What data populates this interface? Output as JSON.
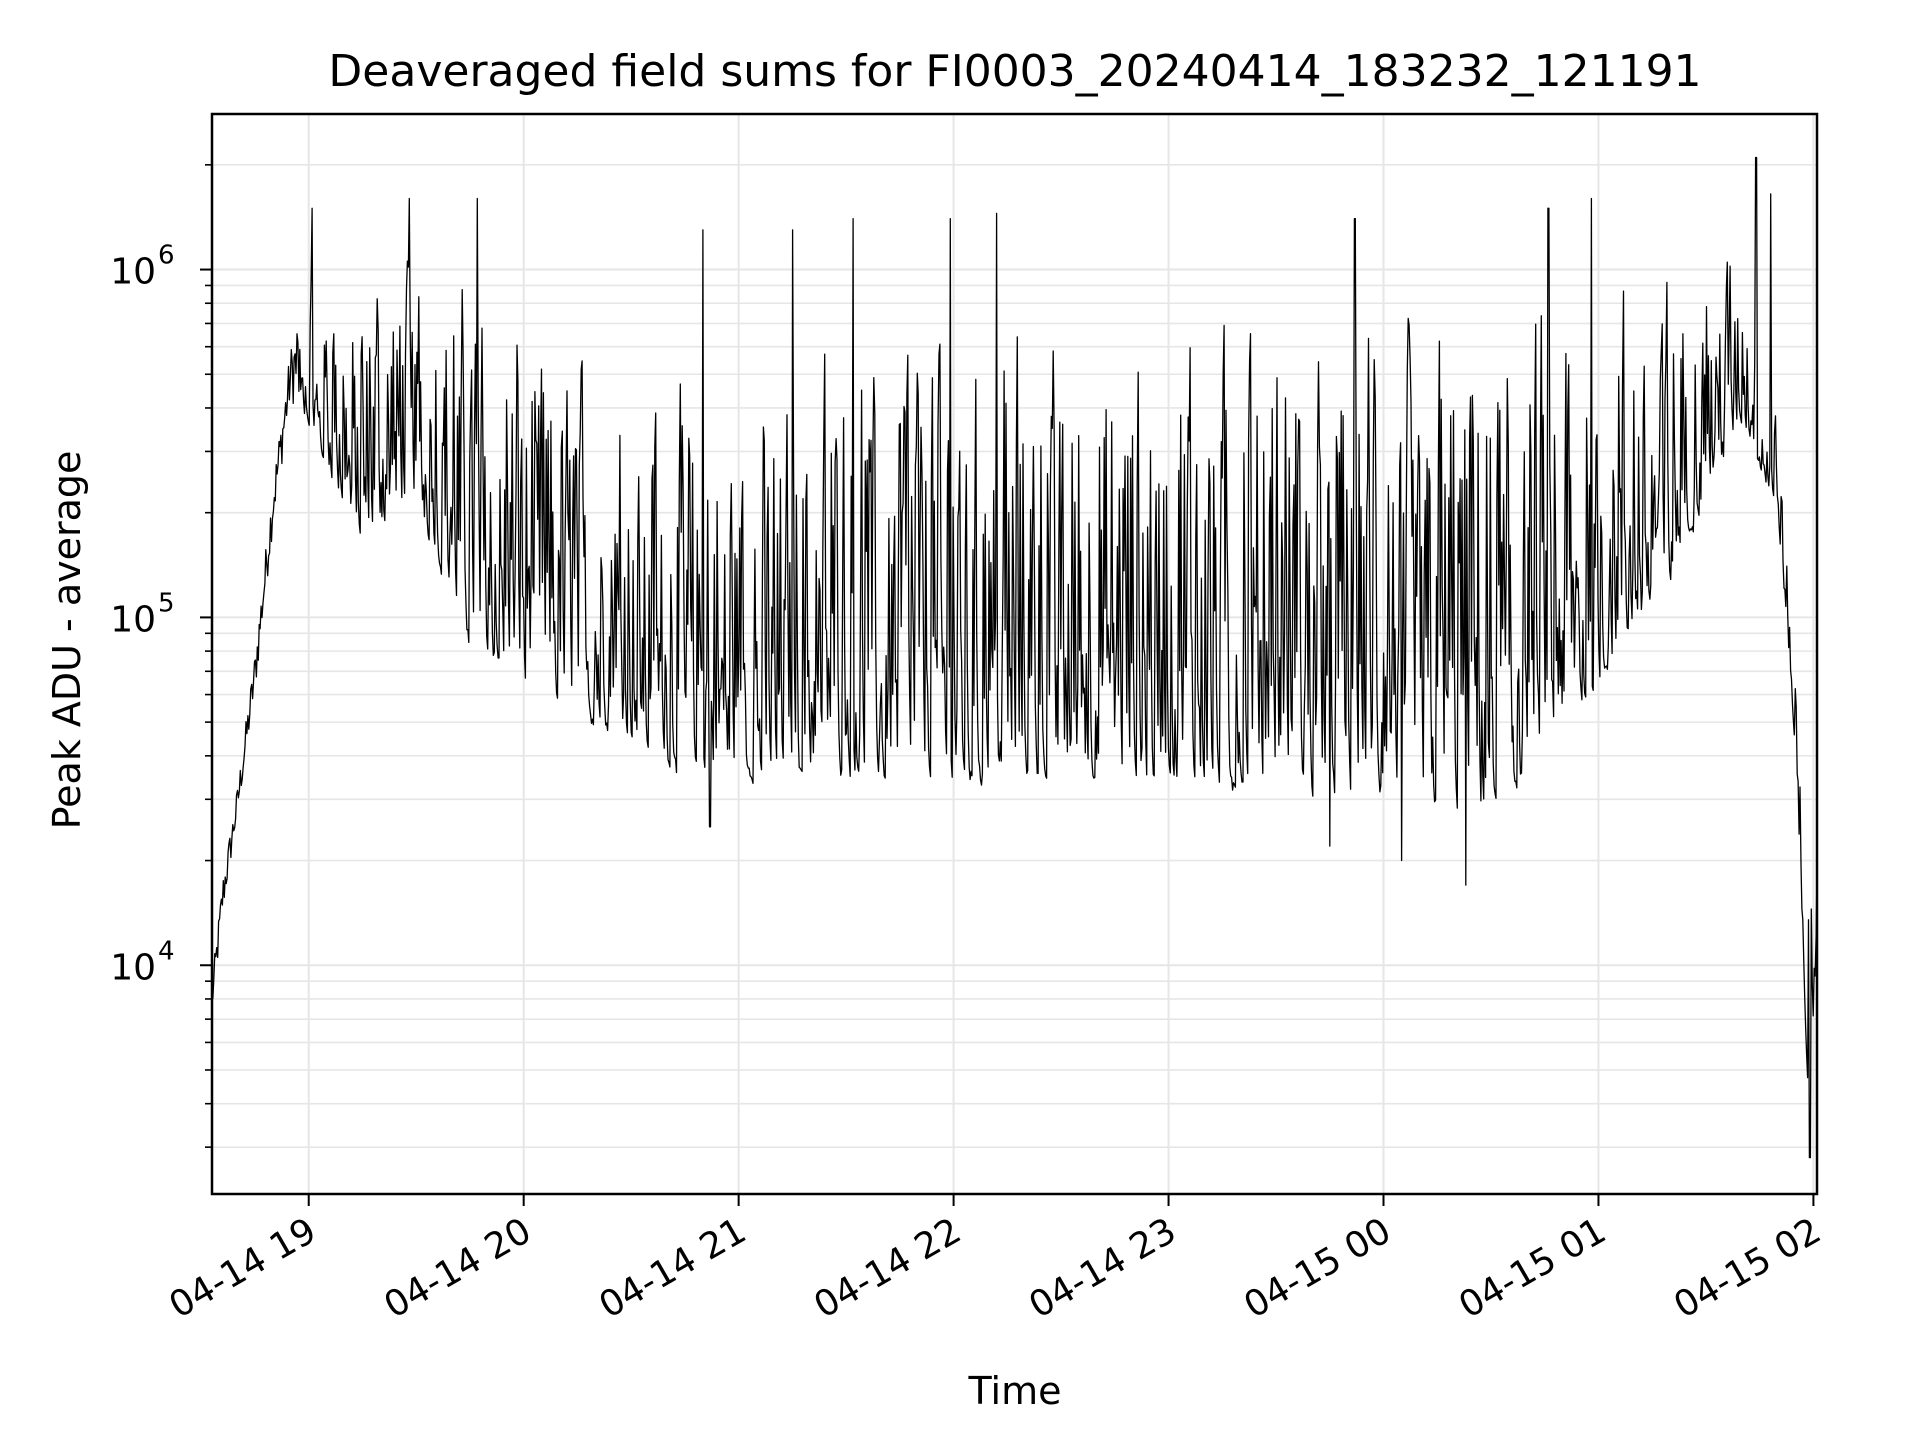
{
  "chart_data": {
    "type": "line",
    "title": "Deaveraged field sums for FI0003_20240414_183232_121191",
    "xlabel": "Time",
    "ylabel": "Peak ADU - average",
    "yscale": "log",
    "xlim": [
      "2024-04-14 18:33",
      "2024-04-15 02:01"
    ],
    "ylim": [
      2200,
      2800000
    ],
    "grid": true,
    "line_color": "#000000",
    "grid_color": "#e6e6e6",
    "x_ticks": [
      {
        "t": "2024-04-14 19:00",
        "label": "04-14 19"
      },
      {
        "t": "2024-04-14 20:00",
        "label": "04-14 20"
      },
      {
        "t": "2024-04-14 21:00",
        "label": "04-14 21"
      },
      {
        "t": "2024-04-14 22:00",
        "label": "04-14 22"
      },
      {
        "t": "2024-04-14 23:00",
        "label": "04-14 23"
      },
      {
        "t": "2024-04-15 00:00",
        "label": "04-15 00"
      },
      {
        "t": "2024-04-15 01:00",
        "label": "04-15 01"
      },
      {
        "t": "2024-04-15 02:00",
        "label": "04-15 02"
      }
    ],
    "y_ticks": [
      {
        "value": 10000,
        "base": "10",
        "exp": "4"
      },
      {
        "value": 100000,
        "base": "10",
        "exp": "5"
      },
      {
        "value": 1000000,
        "base": "10",
        "exp": "6"
      }
    ],
    "series": [
      {
        "envelope": [
          {
            "t": "2024-04-14 18:33",
            "low": 7000,
            "high": 9000
          },
          {
            "t": "2024-04-14 18:36",
            "low": 14000,
            "high": 18000
          },
          {
            "t": "2024-04-14 18:40",
            "low": 26000,
            "high": 32000
          },
          {
            "t": "2024-04-14 18:45",
            "low": 60000,
            "high": 80000
          },
          {
            "t": "2024-04-14 18:50",
            "low": 180000,
            "high": 250000
          },
          {
            "t": "2024-04-14 18:55",
            "low": 420000,
            "high": 600000
          },
          {
            "t": "2024-04-14 19:00",
            "low": 350000,
            "high": 1100000
          },
          {
            "t": "2024-04-14 19:15",
            "low": 150000,
            "high": 1100000
          },
          {
            "t": "2024-04-14 19:30",
            "low": 200000,
            "high": 1400000
          },
          {
            "t": "2024-04-14 19:45",
            "low": 80000,
            "high": 1300000
          },
          {
            "t": "2024-04-14 20:00",
            "low": 60000,
            "high": 1000000
          },
          {
            "t": "2024-04-14 20:15",
            "low": 50000,
            "high": 800000
          },
          {
            "t": "2024-04-14 20:30",
            "low": 40000,
            "high": 700000
          },
          {
            "t": "2024-04-14 20:45",
            "low": 33000,
            "high": 700000
          },
          {
            "t": "2024-04-14 21:00",
            "low": 32000,
            "high": 600000
          },
          {
            "t": "2024-04-14 21:30",
            "low": 33000,
            "high": 900000
          },
          {
            "t": "2024-04-14 22:00",
            "low": 32000,
            "high": 1000000
          },
          {
            "t": "2024-04-14 22:30",
            "low": 32000,
            "high": 1000000
          },
          {
            "t": "2024-04-14 23:00",
            "low": 30000,
            "high": 1000000
          },
          {
            "t": "2024-04-14 23:30",
            "low": 30000,
            "high": 1100000
          },
          {
            "t": "2024-04-15 00:00",
            "low": 28000,
            "high": 1100000
          },
          {
            "t": "2024-04-15 00:30",
            "low": 25000,
            "high": 1200000
          },
          {
            "t": "2024-04-15 00:45",
            "low": 35000,
            "high": 1300000
          },
          {
            "t": "2024-04-15 01:00",
            "low": 60000,
            "high": 1400000
          },
          {
            "t": "2024-04-15 01:20",
            "low": 120000,
            "high": 1300000
          },
          {
            "t": "2024-04-15 01:40",
            "low": 350000,
            "high": 1400000
          },
          {
            "t": "2024-04-15 01:50",
            "low": 200000,
            "high": 400000
          },
          {
            "t": "2024-04-15 01:55",
            "low": 40000,
            "high": 80000
          },
          {
            "t": "2024-04-15 01:59",
            "low": 3000,
            "high": 25000
          },
          {
            "t": "2024-04-15 02:01",
            "low": 12000,
            "high": 22000
          }
        ],
        "spikes": [
          {
            "t": "2024-04-14 19:01",
            "value": 1500000
          },
          {
            "t": "2024-04-14 19:28",
            "value": 1600000
          },
          {
            "t": "2024-04-14 19:47",
            "value": 1600000
          },
          {
            "t": "2024-04-14 20:50",
            "value": 1300000
          },
          {
            "t": "2024-04-14 21:15",
            "value": 1300000
          },
          {
            "t": "2024-04-14 21:32",
            "value": 1400000
          },
          {
            "t": "2024-04-14 21:59",
            "value": 1400000
          },
          {
            "t": "2024-04-14 22:12",
            "value": 1450000
          },
          {
            "t": "2024-04-14 23:52",
            "value": 1400000
          },
          {
            "t": "2024-04-15 00:46",
            "value": 1500000
          },
          {
            "t": "2024-04-15 00:58",
            "value": 1600000
          },
          {
            "t": "2024-04-15 01:44",
            "value": 2100000
          },
          {
            "t": "2024-04-15 01:48",
            "value": 1650000
          },
          {
            "t": "2024-04-15 00:23",
            "value": 17000
          },
          {
            "t": "2024-04-15 00:05",
            "value": 20000
          },
          {
            "t": "2024-04-14 23:45",
            "value": 22000
          },
          {
            "t": "2024-04-14 20:52",
            "value": 25000
          },
          {
            "t": "2024-04-15 01:59",
            "value": 2800
          }
        ]
      }
    ]
  }
}
